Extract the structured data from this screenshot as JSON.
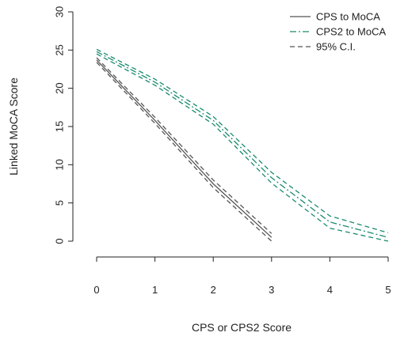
{
  "chart_data": {
    "type": "line",
    "xlabel": "CPS or CPS2 Score",
    "ylabel": "Linked MoCA Score",
    "xlim": [
      0,
      5
    ],
    "ylim": [
      0,
      30
    ],
    "x_ticks": [
      0,
      1,
      2,
      3,
      4,
      5
    ],
    "y_ticks": [
      0,
      5,
      10,
      15,
      20,
      25,
      30
    ],
    "grid": false,
    "legend": {
      "placement": "top-right",
      "entries": [
        {
          "label": "CPS to MoCA",
          "series": "cps_to_moca"
        },
        {
          "label": "CPS2 to MoCA",
          "series": "cps2_to_moca"
        },
        {
          "label": "95% C.I.",
          "series": "ci"
        }
      ]
    },
    "series": [
      {
        "key": "cps_to_moca",
        "name": "CPS to MoCA",
        "color": "#555555",
        "dash": "solid",
        "x": [
          0,
          1,
          2,
          3
        ],
        "y": [
          23.7,
          15.8,
          7.5,
          0.5
        ]
      },
      {
        "key": "cps_ci_upper",
        "color": "#555555",
        "dash": "dashed",
        "x": [
          0,
          1,
          2,
          3
        ],
        "y": [
          24.0,
          16.2,
          8.0,
          1.0
        ]
      },
      {
        "key": "cps_ci_lower",
        "color": "#555555",
        "dash": "dashed",
        "x": [
          0,
          1,
          2,
          3
        ],
        "y": [
          23.4,
          15.4,
          7.0,
          0.0
        ]
      },
      {
        "key": "cps2_to_moca",
        "name": "CPS2 to MoCA",
        "color": "#1a8a6e",
        "dash": "dashdot",
        "x": [
          0,
          1,
          2,
          3,
          4,
          5
        ],
        "y": [
          24.8,
          20.8,
          15.8,
          8.3,
          2.5,
          0.5
        ]
      },
      {
        "key": "cps2_ci_upper",
        "color": "#1a8a6e",
        "dash": "dashed",
        "x": [
          0,
          1,
          2,
          3,
          4,
          5
        ],
        "y": [
          25.1,
          21.2,
          16.3,
          9.0,
          3.3,
          1.1
        ]
      },
      {
        "key": "cps2_ci_lower",
        "color": "#1a8a6e",
        "dash": "dashed",
        "x": [
          0,
          1,
          2,
          3,
          4,
          5
        ],
        "y": [
          24.5,
          20.4,
          15.3,
          7.6,
          1.7,
          0.0
        ]
      }
    ],
    "legend_styles": {
      "cps_to_moca": {
        "color": "#555555",
        "dash": "solid"
      },
      "cps2_to_moca": {
        "color": "#1a8a6e",
        "dash": "dashdot"
      },
      "ci": {
        "color": "#555555",
        "dash": "dashed"
      }
    }
  }
}
